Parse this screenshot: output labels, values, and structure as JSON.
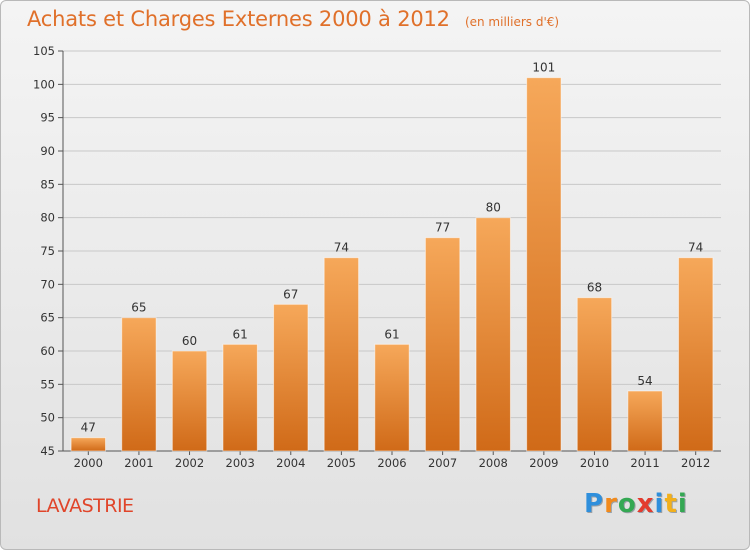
{
  "chart_data": {
    "type": "bar",
    "title": "Achats et Charges Externes 2000 à 2012",
    "subtitle": "(en milliers d'€)",
    "categories": [
      "2000",
      "2001",
      "2002",
      "2003",
      "2004",
      "2005",
      "2006",
      "2007",
      "2008",
      "2009",
      "2010",
      "2011",
      "2012"
    ],
    "values": [
      47,
      65,
      60,
      61,
      67,
      74,
      61,
      77,
      80,
      101,
      68,
      54,
      74
    ],
    "ylim": [
      45,
      105
    ],
    "yticks": [
      45,
      50,
      55,
      60,
      65,
      70,
      75,
      80,
      85,
      90,
      95,
      100,
      105
    ],
    "grid": true,
    "bar_color_top": "#f6a85a",
    "bar_color_bottom": "#d06a18"
  },
  "commune": "LAVASTRIE",
  "logo": {
    "text": "Proxiti",
    "letters": [
      {
        "ch": "P",
        "color": "#2f8fdc"
      },
      {
        "ch": "r",
        "color": "#f28a1c"
      },
      {
        "ch": "o",
        "color": "#34a853"
      },
      {
        "ch": "x",
        "color": "#e33b2e"
      },
      {
        "ch": "i",
        "color": "#2f8fdc"
      },
      {
        "ch": "t",
        "color": "#f2b01c"
      },
      {
        "ch": "i",
        "color": "#34a853"
      }
    ]
  }
}
